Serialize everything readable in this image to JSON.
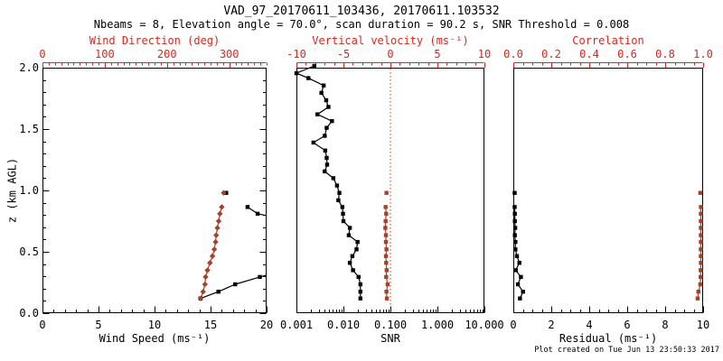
{
  "title": "VAD_97_20170611_103436, 20170611.103532",
  "subtitle": "Nbeams = 8, Elevation angle = 70.0°, scan duration = 90.2 s, SNR Threshold = 0.008",
  "footer": "Plot created on Tue Jun 13 23:50:33 2017",
  "colors": {
    "axis_red": "#d6281e",
    "data_red": "#a8402c",
    "black": "#000000",
    "background": "#ffffff"
  },
  "y_axis": {
    "label": "z (km AGL)",
    "min": 0,
    "max": 2,
    "ylim": [
      0,
      2
    ],
    "ticks": [
      0,
      0.5,
      1,
      1.5,
      2
    ],
    "tick_labels": [
      "0.0",
      "0.5",
      "1.0",
      "1.5",
      "2.0"
    ],
    "minor_step": 0.1
  },
  "chart_data": [
    {
      "name": "wind",
      "type": "scatter",
      "top_axis": {
        "label": "Wind Direction (deg)",
        "min": 0,
        "max": 360,
        "ticks": [
          0,
          100,
          200,
          300
        ],
        "tick_labels": [
          "0",
          "100",
          "200",
          "300"
        ],
        "minor_step": 10
      },
      "bottom_axis": {
        "label": "Wind Speed (ms⁻¹)",
        "scale": "linear",
        "min": 0,
        "max": 20,
        "ticks": [
          0,
          5,
          10,
          15,
          20
        ],
        "tick_labels": [
          "0",
          "5",
          "10",
          "15",
          "20"
        ],
        "minor_step": 1
      },
      "series": [
        {
          "name": "wind-speed",
          "axis": "bottom",
          "color": "black",
          "marker": "square",
          "segments": [
            [
              [
                0.98,
                16.4
              ]
            ],
            [
              [
                0.865,
                18.3
              ],
              [
                0.81,
                19.2
              ],
              [
                0.795,
                20.0,
                1
              ]
            ],
            [
              [
                0.31,
                20.0,
                1
              ],
              [
                0.295,
                19.4
              ],
              [
                0.235,
                17.2
              ],
              [
                0.175,
                15.7
              ],
              [
                0.12,
                14.1
              ]
            ]
          ]
        },
        {
          "name": "wind-direction",
          "axis": "top",
          "color": "red",
          "marker": "diamond",
          "segments": [
            [
              [
                0.98,
                291
              ]
            ],
            [
              [
                0.865,
                288
              ],
              [
                0.81,
                285
              ],
              [
                0.75,
                283
              ],
              [
                0.695,
                281
              ],
              [
                0.635,
                279
              ],
              [
                0.58,
                278
              ],
              [
                0.52,
                276
              ],
              [
                0.465,
                273
              ],
              [
                0.41,
                269
              ],
              [
                0.35,
                265
              ],
              [
                0.295,
                262
              ],
              [
                0.235,
                261
              ],
              [
                0.175,
                258
              ],
              [
                0.12,
                254
              ]
            ]
          ]
        }
      ]
    },
    {
      "name": "snr",
      "type": "scatter",
      "top_axis": {
        "label": "Vertical velocity (ms⁻¹)",
        "min": -10,
        "max": 10,
        "ticks": [
          -10,
          -5,
          0,
          5,
          10
        ],
        "tick_labels": [
          "-10",
          "-5",
          "0",
          "5",
          "10"
        ],
        "minor_step": 1
      },
      "bottom_axis": {
        "label": "SNR",
        "scale": "log",
        "min": 0.001,
        "max": 10,
        "ticks": [
          0.001,
          0.01,
          0.1,
          1,
          10
        ],
        "tick_labels": [
          "0.001",
          "0.010",
          "0.100",
          "1.000",
          "10.000"
        ]
      },
      "refline_top_value": 0,
      "series": [
        {
          "name": "snr",
          "axis": "bottom",
          "color": "black",
          "marker": "square",
          "segments": [
            [
              [
                0.12,
                0.023
              ],
              [
                0.175,
                0.023
              ],
              [
                0.235,
                0.023
              ],
              [
                0.295,
                0.021
              ],
              [
                0.35,
                0.016
              ],
              [
                0.41,
                0.0137
              ],
              [
                0.465,
                0.0155
              ],
              [
                0.52,
                0.019
              ],
              [
                0.58,
                0.02
              ],
              [
                0.635,
                0.013
              ],
              [
                0.695,
                0.0137
              ],
              [
                0.75,
                0.01
              ],
              [
                0.81,
                0.0098
              ],
              [
                0.865,
                0.0095
              ],
              [
                0.92,
                0.0078
              ],
              [
                0.98,
                0.0082
              ],
              [
                1.04,
                0.0073
              ],
              [
                1.1,
                0.0061
              ],
              [
                1.155,
                0.004
              ],
              [
                1.21,
                0.0045
              ],
              [
                1.265,
                0.0044
              ],
              [
                1.325,
                0.0041
              ],
              [
                1.39,
                0.0023
              ],
              [
                1.445,
                0.004
              ],
              [
                1.51,
                0.0044
              ],
              [
                1.565,
                0.0057
              ],
              [
                1.62,
                0.0028
              ],
              [
                1.68,
                0.0048
              ],
              [
                1.735,
                0.0043
              ],
              [
                1.795,
                0.0034
              ],
              [
                1.855,
                0.0038
              ],
              [
                1.915,
                0.0018
              ],
              [
                1.955,
                0.001
              ],
              [
                2.015,
                0.0024
              ]
            ]
          ]
        },
        {
          "name": "vertical-velocity",
          "axis": "top",
          "color": "red",
          "marker": "square",
          "segments": [
            [
              [
                0.98,
                -0.42
              ]
            ],
            [
              [
                0.865,
                -0.51
              ],
              [
                0.81,
                -0.45
              ],
              [
                0.75,
                -0.51
              ],
              [
                0.695,
                -0.54
              ],
              [
                0.635,
                -0.48
              ],
              [
                0.58,
                -0.48
              ],
              [
                0.52,
                -0.42
              ],
              [
                0.465,
                -0.48
              ],
              [
                0.41,
                -0.45
              ],
              [
                0.35,
                -0.4
              ],
              [
                0.295,
                -0.45
              ],
              [
                0.235,
                -0.3
              ],
              [
                0.175,
                -0.42
              ],
              [
                0.12,
                -0.38
              ]
            ]
          ]
        }
      ]
    },
    {
      "name": "residual",
      "type": "scatter",
      "top_axis": {
        "label": "Correlation",
        "min": 0,
        "max": 1,
        "ticks": [
          0,
          0.2,
          0.4,
          0.6,
          0.8,
          1
        ],
        "tick_labels": [
          "0.0",
          "0.2",
          "0.4",
          "0.6",
          "0.8",
          "1.0"
        ],
        "minor_step": 0.05
      },
      "bottom_axis": {
        "label": "Residual (ms⁻¹)",
        "scale": "linear",
        "min": 0,
        "max": 10,
        "ticks": [
          0,
          2,
          4,
          6,
          8,
          10
        ],
        "tick_labels": [
          "0",
          "2",
          "4",
          "6",
          "8",
          "10"
        ],
        "minor_step": 0.5
      },
      "series": [
        {
          "name": "residual",
          "axis": "bottom",
          "color": "black",
          "marker": "square",
          "segments": [
            [
              [
                0.98,
                0.07
              ]
            ],
            [
              [
                0.865,
                0.07
              ],
              [
                0.81,
                0.08
              ],
              [
                0.75,
                0.08
              ],
              [
                0.695,
                0.1
              ],
              [
                0.635,
                0.08
              ],
              [
                0.58,
                0.11
              ],
              [
                0.52,
                0.11
              ],
              [
                0.465,
                0.19
              ],
              [
                0.41,
                0.32
              ],
              [
                0.35,
                0.13
              ],
              [
                0.295,
                0.4
              ],
              [
                0.235,
                0.24
              ],
              [
                0.175,
                0.51
              ],
              [
                0.12,
                0.35
              ]
            ]
          ]
        },
        {
          "name": "correlation",
          "axis": "top",
          "color": "red",
          "marker": "square",
          "segments": [
            [
              [
                0.98,
                0.985
              ]
            ],
            [
              [
                0.865,
                0.988
              ],
              [
                0.81,
                0.988
              ],
              [
                0.75,
                0.988
              ],
              [
                0.695,
                0.988
              ],
              [
                0.635,
                0.988
              ],
              [
                0.58,
                0.988
              ],
              [
                0.52,
                0.988
              ],
              [
                0.465,
                0.988
              ],
              [
                0.41,
                0.988
              ],
              [
                0.35,
                0.987
              ],
              [
                0.295,
                0.987
              ],
              [
                0.235,
                0.985
              ],
              [
                0.175,
                0.975
              ],
              [
                0.12,
                0.971
              ]
            ]
          ]
        }
      ]
    }
  ]
}
